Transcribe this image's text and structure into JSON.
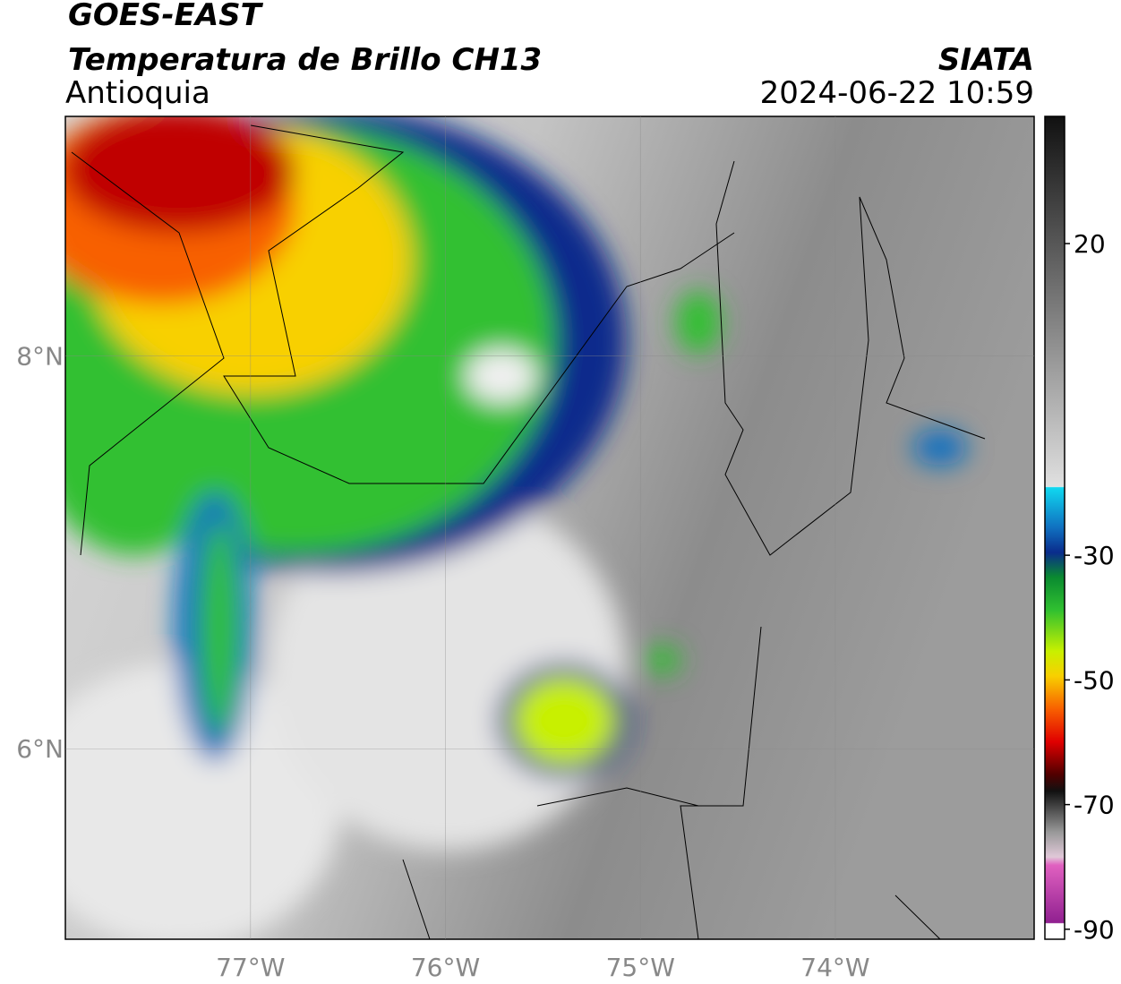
{
  "header": {
    "title": "GOES-EAST",
    "subtitle": "Temperatura de Brillo CH13",
    "region": "Antioquia",
    "agency": "SIATA",
    "datetime": "2024-06-22 10:59"
  },
  "map": {
    "xlim": [
      -77.95,
      -72.98
    ],
    "ylim": [
      5.03,
      9.22
    ],
    "xticks": [
      {
        "value": -77,
        "label": "77°W"
      },
      {
        "value": -76,
        "label": "76°W"
      },
      {
        "value": -75,
        "label": "75°W"
      },
      {
        "value": -74,
        "label": "74°W"
      }
    ],
    "yticks": [
      {
        "value": 8,
        "label": "8°N"
      },
      {
        "value": 6,
        "label": "6°N"
      }
    ]
  },
  "colorbar": {
    "clim": [
      -91.6,
      40.4
    ],
    "ticks": [
      20,
      -30,
      -50,
      -70,
      -90
    ]
  }
}
